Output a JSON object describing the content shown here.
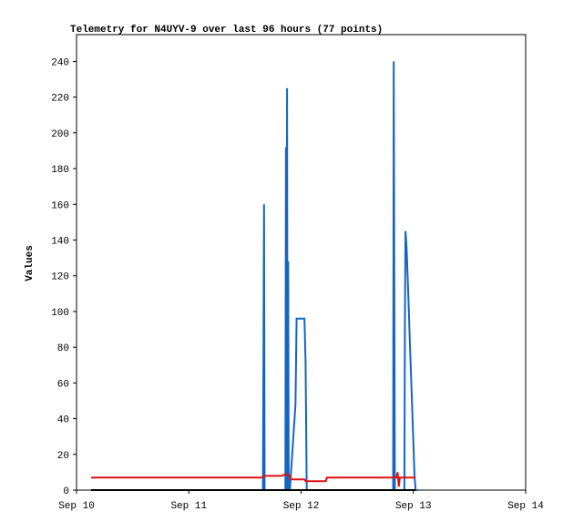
{
  "chart_data": {
    "type": "line",
    "title": "Telemetry for N4UYV-9 over last 96 hours (77 points)",
    "y_label": "Values",
    "xlim": [
      0,
      4
    ],
    "xticks": [
      {
        "value": 0,
        "label": "Sep 10"
      },
      {
        "value": 1,
        "label": "Sep 11"
      },
      {
        "value": 2,
        "label": "Sep 12"
      },
      {
        "value": 3,
        "label": "Sep 13"
      },
      {
        "value": 4,
        "label": "Sep 14"
      }
    ],
    "ylim": [
      0,
      255
    ],
    "yticks": [
      0,
      20,
      40,
      60,
      80,
      100,
      120,
      140,
      160,
      180,
      200,
      220,
      240
    ],
    "grid": false,
    "series": [
      {
        "color": "#1565c0",
        "x": [
          0.13,
          1.66,
          1.665,
          1.67,
          1.675,
          1.86,
          1.865,
          1.87,
          1.875,
          1.88,
          1.885,
          1.89,
          1.9,
          1.95,
          1.96,
          1.97,
          2.03,
          2.04,
          2.05,
          2.06,
          2.82,
          2.825,
          2.83,
          2.835,
          2.84,
          2.92,
          2.925,
          2.93,
          2.94,
          2.95,
          2.96,
          2.97,
          2.98,
          2.99,
          3.0,
          3.01,
          3.02,
          3.04
        ],
        "values": [
          0,
          0,
          80,
          160,
          0,
          0,
          192,
          0,
          225,
          0,
          128,
          0,
          0,
          48,
          96,
          96,
          96,
          72,
          0,
          0,
          0,
          240,
          120,
          0,
          0,
          0,
          98,
          145,
          135,
          118,
          100,
          80,
          63,
          45,
          27,
          8,
          0,
          0
        ]
      },
      {
        "color": "#e01010",
        "x": [
          0.13,
          1.66,
          1.67,
          1.83,
          1.87,
          1.9,
          1.91,
          2.03,
          2.04,
          2.22,
          2.23,
          2.85,
          2.86,
          2.87,
          2.88,
          3.02
        ],
        "values": [
          7,
          7,
          8,
          8,
          9,
          8,
          6,
          6,
          5,
          5,
          7,
          7,
          10,
          2,
          7,
          7
        ]
      },
      {
        "color": "#000000",
        "x": [
          0.13,
          3.02
        ],
        "values": [
          0,
          0
        ]
      }
    ]
  }
}
